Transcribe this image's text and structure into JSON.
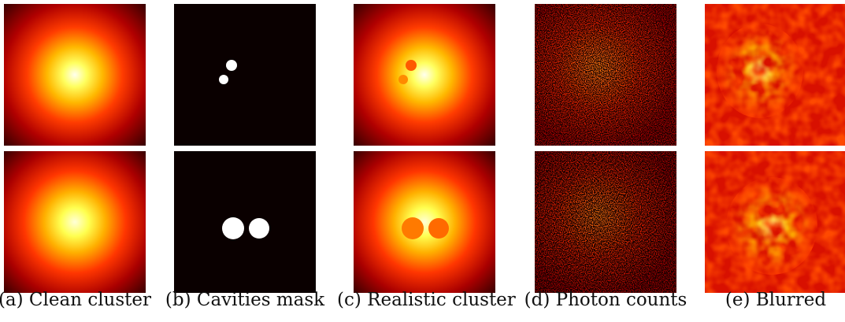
{
  "figure": {
    "captions": {
      "a": "(a) Clean cluster",
      "b": "(b) Cavities mask",
      "c": "(c) Realistic cluster",
      "d": "(d) Photon counts",
      "e": "(e) Blurred"
    },
    "colormap": [
      "#000000",
      "#5a0000",
      "#c80000",
      "#ff6a00",
      "#ffd000",
      "#ffffff"
    ]
  }
}
